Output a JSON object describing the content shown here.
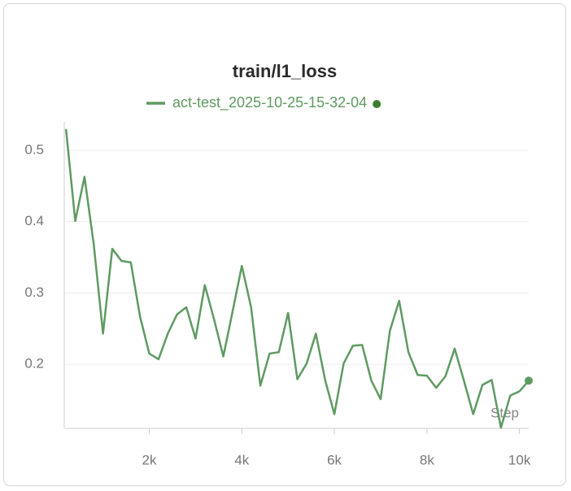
{
  "chart_data": {
    "type": "line",
    "title": "train/l1_loss",
    "xlabel": "Step",
    "x": [
      200,
      400,
      600,
      800,
      1000,
      1200,
      1400,
      1600,
      1800,
      2000,
      2200,
      2400,
      2600,
      2800,
      3000,
      3200,
      3400,
      3600,
      3800,
      4000,
      4200,
      4400,
      4600,
      4800,
      5000,
      5200,
      5400,
      5600,
      5800,
      6000,
      6200,
      6400,
      6600,
      6800,
      7000,
      7200,
      7400,
      7600,
      7800,
      8000,
      8200,
      8400,
      8600,
      8800,
      9000,
      9200,
      9400,
      9600,
      9800,
      10000,
      10200
    ],
    "series": [
      {
        "name": "act-test_2025-10-25-15-32-04",
        "color": "#5f9a62",
        "marker_color": "#3d7d32",
        "values": [
          0.53,
          0.401,
          0.463,
          0.368,
          0.243,
          0.362,
          0.345,
          0.343,
          0.267,
          0.215,
          0.207,
          0.243,
          0.27,
          0.28,
          0.236,
          0.311,
          0.263,
          0.211,
          0.274,
          0.338,
          0.28,
          0.17,
          0.215,
          0.217,
          0.272,
          0.179,
          0.201,
          0.243,
          0.178,
          0.13,
          0.201,
          0.226,
          0.227,
          0.177,
          0.151,
          0.247,
          0.289,
          0.217,
          0.185,
          0.184,
          0.167,
          0.183,
          0.222,
          0.177,
          0.13,
          0.171,
          0.178,
          0.111,
          0.156,
          0.162,
          0.177
        ]
      }
    ],
    "xlim": [
      180,
      10200
    ],
    "ylim": [
      0.11,
      0.54
    ],
    "xticks": [
      {
        "value": 2000,
        "label": "2k"
      },
      {
        "value": 4000,
        "label": "4k"
      },
      {
        "value": 6000,
        "label": "6k"
      },
      {
        "value": 8000,
        "label": "8k"
      },
      {
        "value": 10000,
        "label": "10k"
      }
    ],
    "yticks": [
      0.2,
      0.3,
      0.4,
      0.5
    ],
    "grid": true
  }
}
